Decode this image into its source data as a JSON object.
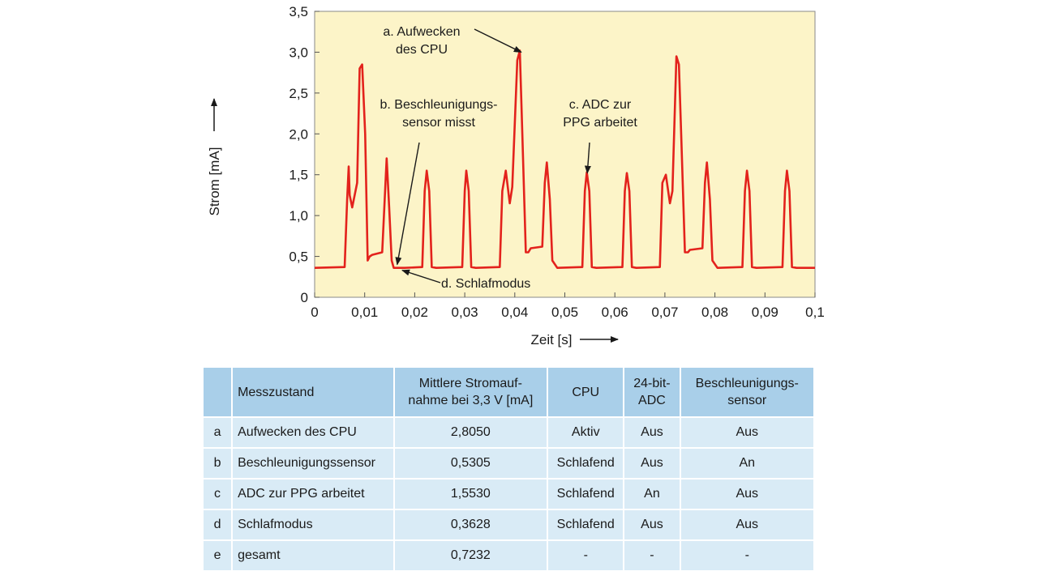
{
  "chart_data": {
    "type": "line",
    "xlabel": "Zeit [s]",
    "ylabel": "Strom [mA]",
    "xlim": [
      0,
      0.1
    ],
    "ylim": [
      0,
      3.5
    ],
    "x_ticks": [
      0,
      0.01,
      0.02,
      0.03,
      0.04,
      0.05,
      0.06,
      0.07,
      0.08,
      0.09,
      0.1
    ],
    "x_tick_labels": [
      "0",
      "0,01",
      "0,02",
      "0,03",
      "0,04",
      "0,05",
      "0,06",
      "0,07",
      "0,08",
      "0,09",
      "0,1"
    ],
    "y_ticks": [
      0,
      0.5,
      1.0,
      1.5,
      2.0,
      2.5,
      3.0,
      3.5
    ],
    "y_tick_labels": [
      "0",
      "0,5",
      "1,0",
      "1,5",
      "2,0",
      "2,5",
      "3,0",
      "3,5"
    ],
    "series": [
      {
        "color": "#e3221c",
        "x": [
          0,
          0.006,
          0.0065,
          0.0068,
          0.007,
          0.0075,
          0.0085,
          0.009,
          0.0095,
          0.0101,
          0.0106,
          0.011,
          0.0115,
          0.0135,
          0.014,
          0.0144,
          0.0149,
          0.0154,
          0.0158,
          0.0165,
          0.018,
          0.0215,
          0.022,
          0.0224,
          0.0229,
          0.0234,
          0.0243,
          0.0295,
          0.03,
          0.0303,
          0.0308,
          0.0313,
          0.0322,
          0.037,
          0.0375,
          0.0382,
          0.039,
          0.0395,
          0.0405,
          0.041,
          0.0415,
          0.0422,
          0.0427,
          0.0432,
          0.0455,
          0.046,
          0.0464,
          0.047,
          0.0475,
          0.0485,
          0.0535,
          0.054,
          0.0544,
          0.0549,
          0.0554,
          0.0563,
          0.0615,
          0.062,
          0.0624,
          0.0629,
          0.0634,
          0.0643,
          0.069,
          0.0695,
          0.0702,
          0.071,
          0.0715,
          0.0723,
          0.0728,
          0.0733,
          0.074,
          0.0746,
          0.075,
          0.0775,
          0.078,
          0.0784,
          0.079,
          0.0795,
          0.0805,
          0.0855,
          0.086,
          0.0864,
          0.0869,
          0.0874,
          0.0883,
          0.0935,
          0.094,
          0.0944,
          0.0949,
          0.0954,
          0.0963,
          0.1
        ],
        "y": [
          0.36,
          0.37,
          1.2,
          1.6,
          1.25,
          1.1,
          1.4,
          2.8,
          2.85,
          2.0,
          0.45,
          0.5,
          0.52,
          0.55,
          1.2,
          1.7,
          1.1,
          0.45,
          0.36,
          0.36,
          0.36,
          0.37,
          1.3,
          1.55,
          1.3,
          0.37,
          0.36,
          0.37,
          1.3,
          1.55,
          1.3,
          0.37,
          0.36,
          0.37,
          1.3,
          1.55,
          1.15,
          1.35,
          2.9,
          3.02,
          2.0,
          0.55,
          0.55,
          0.6,
          0.62,
          1.4,
          1.65,
          1.2,
          0.45,
          0.36,
          0.37,
          1.3,
          1.53,
          1.3,
          0.37,
          0.36,
          0.37,
          1.3,
          1.52,
          1.3,
          0.37,
          0.36,
          0.37,
          1.4,
          1.5,
          1.15,
          1.3,
          2.95,
          2.85,
          1.9,
          0.55,
          0.55,
          0.58,
          0.6,
          1.4,
          1.65,
          1.2,
          0.45,
          0.36,
          0.37,
          1.3,
          1.55,
          1.3,
          0.37,
          0.36,
          0.37,
          1.3,
          1.55,
          1.3,
          0.37,
          0.36,
          0.36
        ]
      }
    ],
    "annotations": [
      {
        "lines": [
          "a. Aufwecken",
          "des CPU"
        ],
        "target_x": 0.0413,
        "target_y": 3.0
      },
      {
        "lines": [
          "b. Beschleunigungs-",
          "sensor misst"
        ],
        "target_x": 0.0165,
        "target_y": 0.4
      },
      {
        "lines": [
          "c. ADC zur",
          "PPG arbeitet"
        ],
        "target_x": 0.0545,
        "target_y": 1.52
      },
      {
        "lines": [
          "d. Schlafmodus"
        ],
        "target_x": 0.0175,
        "target_y": 0.33
      }
    ],
    "background": "#fcf4c8",
    "grid": false
  },
  "table": {
    "headers": [
      "",
      "Messzustand",
      "Mittlere Stromauf-\nnahme bei 3,3 V [mA]",
      "CPU",
      "24-bit-\nADC",
      "Beschleunigungs-\nsensor"
    ],
    "rows": [
      [
        "a",
        "Aufwecken des CPU",
        "2,8050",
        "Aktiv",
        "Aus",
        "Aus"
      ],
      [
        "b",
        "Beschleunigungssensor",
        "0,5305",
        "Schlafend",
        "Aus",
        "An"
      ],
      [
        "c",
        "ADC zur PPG arbeitet",
        "1,5530",
        "Schlafend",
        "An",
        "Aus"
      ],
      [
        "d",
        "Schlafmodus",
        "0,3628",
        "Schlafend",
        "Aus",
        "Aus"
      ],
      [
        "e",
        "gesamt",
        "0,7232",
        "-",
        "-",
        "-"
      ]
    ]
  }
}
